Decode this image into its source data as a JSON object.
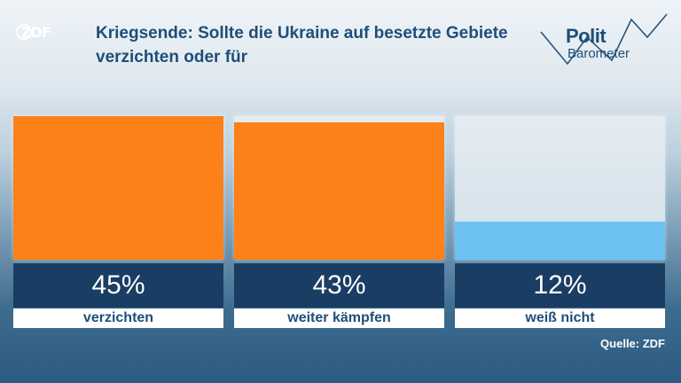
{
  "logo": {
    "text": "ZDF"
  },
  "title": "Kriegsende: Sollte die Ukraine auf besetzte Gebiete verzichten oder für",
  "brand": {
    "line1": "Polit",
    "line2": "Barometer"
  },
  "source": "Quelle: ZDF",
  "colors": {
    "orange": "#fb8118",
    "light_blue": "#6cc1f2",
    "dark_blue": "#1a3d63"
  },
  "chart_data": {
    "type": "bar",
    "categories": [
      "verzichten",
      "weiter kämpfen",
      "weiß nicht"
    ],
    "values": [
      45,
      43,
      12
    ],
    "value_labels": [
      "45%",
      "43%",
      "12%"
    ],
    "bar_colors": [
      "#fb8118",
      "#fb8118",
      "#6cc1f2"
    ],
    "ylim": [
      0,
      45
    ],
    "title": "Kriegsende: Sollte die Ukraine auf besetzte Gebiete verzichten oder für",
    "xlabel": "",
    "ylabel": "",
    "grid": false,
    "legend": "none"
  }
}
